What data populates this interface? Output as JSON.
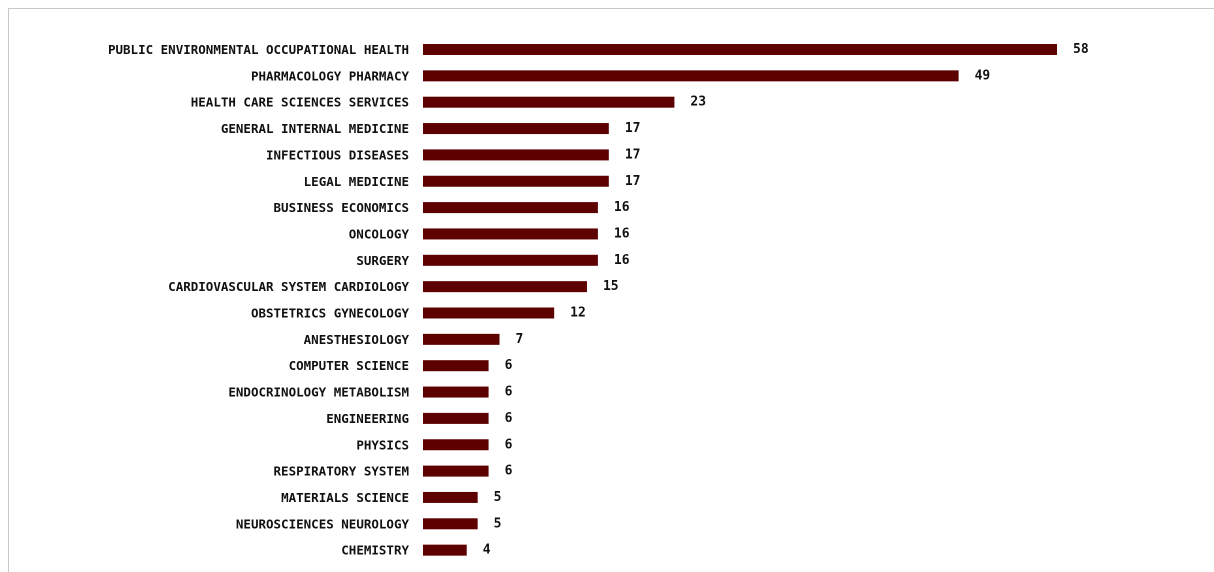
{
  "chart_data": {
    "type": "bar",
    "orientation": "horizontal",
    "categories": [
      "PUBLIC ENVIRONMENTAL OCCUPATIONAL HEALTH",
      "PHARMACOLOGY PHARMACY",
      "HEALTH CARE SCIENCES SERVICES",
      "GENERAL INTERNAL MEDICINE",
      "INFECTIOUS DISEASES",
      "LEGAL MEDICINE",
      "BUSINESS ECONOMICS",
      "ONCOLOGY",
      "SURGERY",
      "CARDIOVASCULAR SYSTEM CARDIOLOGY",
      "OBSTETRICS GYNECOLOGY",
      "ANESTHESIOLOGY",
      "COMPUTER SCIENCE",
      "ENDOCRINOLOGY METABOLISM",
      "ENGINEERING",
      "PHYSICS",
      "RESPIRATORY SYSTEM",
      "MATERIALS SCIENCE",
      "NEUROSCIENCES NEUROLOGY",
      "CHEMISTRY"
    ],
    "values": [
      58,
      49,
      23,
      17,
      17,
      17,
      16,
      16,
      16,
      15,
      12,
      7,
      6,
      6,
      6,
      6,
      6,
      5,
      5,
      4
    ],
    "title": "",
    "xlabel": "",
    "ylabel": "",
    "xlim": [
      0,
      58
    ],
    "grid": false,
    "legend": "none",
    "data_labels": true,
    "bar_color": "#5c0000"
  }
}
